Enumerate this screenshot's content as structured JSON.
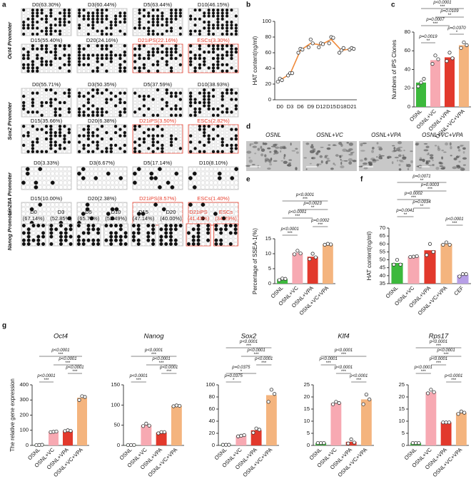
{
  "panel_labels": [
    "a",
    "b",
    "c",
    "d",
    "e",
    "f",
    "g"
  ],
  "methylation": {
    "promoters": [
      {
        "name": "Oct4 Promoter",
        "samples": [
          {
            "label": "D0(63.30%)"
          },
          {
            "label": "D3(60.44%)"
          },
          {
            "label": "D5(63.44%)"
          },
          {
            "label": "D10(46.15%)"
          },
          {
            "label": "D15(55.40%)"
          },
          {
            "label": "D20(24.16%)"
          },
          {
            "label": "D21iPS(22.16%)",
            "color": "#e8402f"
          },
          {
            "label": "ESCs(3.30%)",
            "color": "#e8402f"
          }
        ]
      },
      {
        "name": "Sox2 Promoter",
        "samples": [
          {
            "label": "D0(55.71%)"
          },
          {
            "label": "D3(50.35%)"
          },
          {
            "label": "D5(37.59%)"
          },
          {
            "label": "D10(38.93%)"
          },
          {
            "label": "D15(35.66%)"
          },
          {
            "label": "D20(6.38%)"
          },
          {
            "label": "D21iPS(3.50%)",
            "color": "#e8402f"
          },
          {
            "label": "ESCs(2.82%)",
            "color": "#e8402f"
          }
        ]
      },
      {
        "name": "Lin28A Promoter",
        "samples": [
          {
            "label": "D0(3.33%)"
          },
          {
            "label": "D3(6.67%)"
          },
          {
            "label": "D5(17.14%)"
          },
          {
            "label": "D10(8.10%)"
          },
          {
            "label": "D15(10.00%)"
          },
          {
            "label": "D20(2.38%)"
          },
          {
            "label": "D21iPS(8.57%)",
            "color": "#e8402f"
          },
          {
            "label": "ESCs(1.40%)",
            "color": "#e8402f"
          }
        ]
      },
      {
        "name": "Nanog Promoter",
        "samples": [
          {
            "label": "D0",
            "percent": "(67.14%)"
          },
          {
            "label": "D3",
            "percent": "(52.85%)"
          },
          {
            "label": "D5",
            "percent": "(65.71%)"
          },
          {
            "label": "D10",
            "percent": "(52.49%)"
          },
          {
            "label": "D15",
            "percent": "(47.14%)"
          },
          {
            "label": "D20",
            "percent": "(40.00%)"
          },
          {
            "label": "D21iPS",
            "percent": "(41.43%)",
            "color": "#e8402f"
          },
          {
            "label": "ESCs",
            "percent": "(34.29%)",
            "color": "#e8402f"
          }
        ]
      }
    ]
  },
  "micrographs": {
    "labels": [
      "OSNL",
      "OSNL+VC",
      "OSNL+VPA",
      "OSNL+VC+VPA"
    ]
  },
  "chart_data": [
    {
      "type": "line",
      "ylabel": "HAT content(ng/ml)",
      "categories": [
        "D0",
        "D3",
        "D6",
        "D9",
        "D12",
        "D15",
        "D18",
        "D21"
      ],
      "values": [
        25,
        33,
        63,
        72,
        70,
        77,
        63,
        65
      ],
      "color": "#f08a3a",
      "points": [
        [
          23,
          27,
          25
        ],
        [
          31,
          34,
          34
        ],
        [
          60,
          65,
          64
        ],
        [
          67,
          77,
          72
        ],
        [
          67,
          72,
          71
        ],
        [
          72,
          80,
          79
        ],
        [
          60,
          63,
          66
        ],
        [
          64,
          66,
          65
        ]
      ],
      "ylim": [
        0,
        100
      ],
      "yticks": [
        0,
        20,
        40,
        60,
        80,
        100
      ]
    },
    {
      "type": "bar",
      "ylabel": "Numbers of iPS Clones",
      "categories": [
        "OSNL",
        "OSNL+VC",
        "OSNL+VPA",
        "OSNL+VC+VPA"
      ],
      "values": [
        26,
        50,
        53,
        66
      ],
      "colors": [
        "#3cb93c",
        "#f7a9b2",
        "#e2392c",
        "#f4b47e"
      ],
      "points": [
        [
          22,
          26,
          30
        ],
        [
          46,
          55,
          51
        ],
        [
          49,
          58,
          52
        ],
        [
          63,
          69,
          66
        ]
      ],
      "ylim": [
        0,
        80
      ],
      "yticks": [
        0,
        20,
        40,
        60,
        80
      ],
      "annotations": [
        {
          "label": "p<0.0001",
          "stars": "***"
        },
        {
          "label": "p=0.0109",
          "stars": "**"
        },
        {
          "label": "p=0.0007",
          "stars": "***"
        },
        {
          "label": "p=0.0370",
          "stars": "*"
        },
        {
          "label": "p=0.0019",
          "stars": "**"
        }
      ]
    },
    {
      "type": "bar",
      "ylabel": "Percentage of SSEA-1(%)",
      "categories": [
        "OSNL",
        "OSNL+VC",
        "OSNL+VPA",
        "OSNL+VC+VPA"
      ],
      "values": [
        1.5,
        10.3,
        9,
        13.1
      ],
      "colors": [
        "#3cb93c",
        "#f7a9b2",
        "#e2392c",
        "#f4b47e"
      ],
      "points": [
        [
          1.2,
          1.7,
          1.6
        ],
        [
          9.8,
          11,
          10.1
        ],
        [
          8.2,
          10,
          8.8
        ],
        [
          13,
          13.3,
          13.1
        ]
      ],
      "ylim": [
        0,
        15
      ],
      "yticks": [
        0,
        5,
        10,
        15
      ],
      "annotations": [
        {
          "label": "p<0.0001",
          "stars": "***"
        },
        {
          "label": "p=0.0023",
          "stars": "**"
        },
        {
          "label": "p<0.0001",
          "stars": "***"
        },
        {
          "label": "p=0.0002",
          "stars": "***"
        },
        {
          "label": "p<0.0001",
          "stars": "***"
        }
      ]
    },
    {
      "type": "bar",
      "ylabel": "HAT content(ng/ml)",
      "categories": [
        "OSNL",
        "OSNL+VC",
        "OSNL+VPA",
        "OSNL+VC+VPA",
        "CEF"
      ],
      "values": [
        48,
        52,
        56,
        60,
        40.5
      ],
      "colors": [
        "#3cb93c",
        "#f7a9b2",
        "#e2392c",
        "#f4b47e",
        "#b79fe6"
      ],
      "points": [
        [
          47,
          50,
          47
        ],
        [
          51.8,
          52,
          52.3
        ],
        [
          53,
          60,
          55
        ],
        [
          59.5,
          61,
          59.5
        ],
        [
          39.5,
          41,
          41
        ]
      ],
      "ylim": [
        35,
        70
      ],
      "yticks": [
        35,
        40,
        45,
        50,
        55,
        60,
        65,
        70
      ],
      "annotations": [
        {
          "label": "p=0.0071",
          "stars": "**"
        },
        {
          "label": "p=0.0003",
          "stars": "***"
        },
        {
          "label": "p=0.0002",
          "stars": "***"
        },
        {
          "label": "p=0.0034",
          "stars": "**"
        },
        {
          "label": "p=0.0041",
          "stars": "**"
        },
        {
          "label": "p<0.0001",
          "stars": "***"
        }
      ]
    },
    {
      "type": "bar",
      "title": "Oct4",
      "ylabel": "The relative gene expression",
      "categories": [
        "OSNL",
        "OSNL+VC",
        "OSNL+VPA",
        "OSNL+VC+VPA"
      ],
      "values": [
        3,
        90,
        97,
        315
      ],
      "colors": [
        "#3cb93c",
        "#f7a9b2",
        "#e2392c",
        "#f4b47e"
      ],
      "points": [
        [
          2,
          3,
          4
        ],
        [
          88,
          90,
          92
        ],
        [
          95,
          100,
          96
        ],
        [
          300,
          325,
          320
        ]
      ],
      "ylim": [
        0,
        400
      ],
      "yticks": [
        0,
        100,
        200,
        300,
        400
      ],
      "annotations": [
        {
          "label": "p<0.0001",
          "stars": "***"
        },
        {
          "label": "p<0.0001",
          "stars": "***"
        },
        {
          "label": "p<0.0001",
          "stars": "***"
        },
        {
          "label": "p<0.0001",
          "stars": "***"
        }
      ]
    },
    {
      "type": "bar",
      "title": "Nanog",
      "categories": [
        "OSNL",
        "OSNL+VC",
        "OSNL+VPA",
        "OSNL+VC+VPA"
      ],
      "values": [
        1,
        50,
        32,
        98
      ],
      "colors": [
        "#3cb93c",
        "#f7a9b2",
        "#e2392c",
        "#f4b47e"
      ],
      "points": [
        [
          1,
          1,
          1
        ],
        [
          48,
          54,
          49
        ],
        [
          30,
          33,
          33
        ],
        [
          97,
          99,
          98
        ]
      ],
      "ylim": [
        0,
        150
      ],
      "yticks": [
        0,
        50,
        100,
        150
      ],
      "annotations": [
        {
          "label": "p<0.0001",
          "stars": "***"
        },
        {
          "label": "p<0.0001",
          "stars": "***"
        },
        {
          "label": "p<0.0001",
          "stars": "***"
        },
        {
          "label": "p<0.0001",
          "stars": "***"
        }
      ]
    },
    {
      "type": "bar",
      "title": "Sox2",
      "categories": [
        "OSNL",
        "OSNL+VC",
        "OSNL+VPA",
        "OSNL+VC+VPA"
      ],
      "values": [
        1,
        16,
        25,
        83
      ],
      "colors": [
        "#3cb93c",
        "#f7a9b2",
        "#e2392c",
        "#f4b47e"
      ],
      "points": [
        [
          1,
          1,
          1
        ],
        [
          15,
          16,
          17
        ],
        [
          21,
          28,
          26
        ],
        [
          72,
          92,
          85
        ]
      ],
      "ylim": [
        0,
        100
      ],
      "yticks": [
        0,
        20,
        40,
        60,
        80,
        100
      ],
      "annotations": [
        {
          "label": "p<0.0001",
          "stars": "***"
        },
        {
          "label": "p<0.0001",
          "stars": "***"
        },
        {
          "label": "p<0.0001",
          "stars": "***"
        },
        {
          "label": "p=0.0375",
          "stars": "*"
        },
        {
          "label": "p=0.0375",
          "stars": "*"
        }
      ]
    },
    {
      "type": "bar",
      "title": "Klf4",
      "categories": [
        "OSNL",
        "OSNL+VC",
        "OSNL+VPA",
        "OSNL+VC+VPA"
      ],
      "values": [
        1,
        17.5,
        1.5,
        19
      ],
      "colors": [
        "#3cb93c",
        "#f7a9b2",
        "#e2392c",
        "#f4b47e"
      ],
      "points": [
        [
          1,
          1,
          1
        ],
        [
          17,
          18,
          17.5
        ],
        [
          0.8,
          2.5,
          1.2
        ],
        [
          17,
          21,
          19
        ]
      ],
      "ylim": [
        0,
        25
      ],
      "yticks": [
        0,
        5,
        10,
        15,
        20,
        25
      ],
      "annotations": [
        {
          "label": "p<0.0001",
          "stars": "***"
        },
        {
          "label": "p<0.0001",
          "stars": "***"
        },
        {
          "label": "p<0.0001",
          "stars": "***"
        },
        {
          "label": "p<0.0001",
          "stars": "***"
        }
      ]
    },
    {
      "type": "bar",
      "title": "Rps17",
      "categories": [
        "OSNL",
        "OSNL+VC",
        "OSNL+VPA",
        "OSNL+VC+VPA"
      ],
      "values": [
        1,
        22,
        9.5,
        13.5
      ],
      "colors": [
        "#3cb93c",
        "#f7a9b2",
        "#e2392c",
        "#f4b47e"
      ],
      "points": [
        [
          1,
          1,
          1
        ],
        [
          21.5,
          23,
          22
        ],
        [
          9.5,
          9.5,
          9.5
        ],
        [
          13,
          14,
          13.5
        ]
      ],
      "ylim": [
        0,
        25
      ],
      "yticks": [
        0,
        5,
        10,
        15,
        20,
        25
      ],
      "annotations": [
        {
          "label": "p<0.0001",
          "stars": "***"
        },
        {
          "label": "p<0.0001",
          "stars": "***"
        },
        {
          "label": "p<0.0001",
          "stars": "***"
        },
        {
          "label": "p<0.0001",
          "stars": "***"
        },
        {
          "label": "p<0.0001",
          "stars": "***"
        }
      ]
    }
  ]
}
